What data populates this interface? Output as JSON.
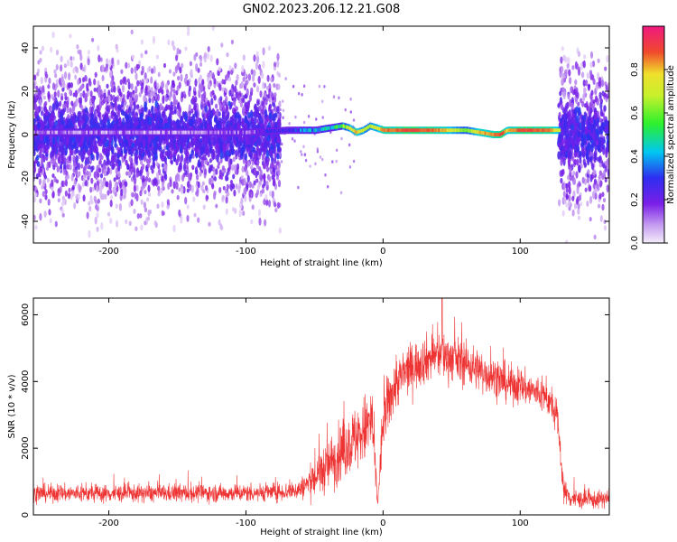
{
  "title": "GN02.2023.206.12.21.G08",
  "chart_data": [
    {
      "type": "heatmap",
      "xlabel": "Height of straight line (km)",
      "ylabel": "Frequency (Hz)",
      "xlim": [
        -255,
        165
      ],
      "ylim": [
        -50,
        50
      ],
      "xticks": [
        -200,
        -100,
        0,
        100
      ],
      "yticks": [
        -40,
        -20,
        0,
        20,
        40
      ],
      "colorbar": {
        "label": "Normalized spectral amplitude",
        "range": [
          0,
          1
        ],
        "ticks": [
          "0.0",
          "0.2",
          "0.4",
          "0.6",
          "0.8"
        ],
        "colormap": "rainbow (white/violet -> purple -> blue -> cyan -> green -> yellow -> red -> pink)"
      },
      "signal_track": {
        "description": "Dominant spectral ridge near 0 to +3 Hz",
        "x": [
          -255,
          -200,
          -150,
          -100,
          -70,
          -50,
          -40,
          -30,
          -25,
          -20,
          -15,
          -10,
          0,
          20,
          40,
          60,
          70,
          80,
          85,
          90,
          100,
          120,
          128
        ],
        "freq": [
          1,
          1,
          1,
          1,
          2,
          2,
          3,
          4,
          3,
          1,
          2,
          4,
          2,
          2,
          2,
          2,
          1,
          0,
          0,
          2,
          2,
          2,
          2
        ],
        "amplitude": [
          0.1,
          0.1,
          0.1,
          0.15,
          0.3,
          0.4,
          0.45,
          0.6,
          0.75,
          0.8,
          0.7,
          0.65,
          0.85,
          0.9,
          0.85,
          0.6,
          0.8,
          0.85,
          0.9,
          0.8,
          0.9,
          0.85,
          0.7
        ]
      },
      "noise_regions": [
        {
          "x": [
            -255,
            -75
          ],
          "spread_hz": 50
        },
        {
          "x": [
            128,
            165
          ],
          "spread_hz": 50
        }
      ]
    },
    {
      "type": "line",
      "xlabel": "Height of straight line (km)",
      "ylabel": "SNR (10 * v/v)",
      "xlim": [
        -255,
        165
      ],
      "ylim": [
        0,
        6500
      ],
      "xticks": [
        -200,
        -100,
        0,
        100
      ],
      "yticks": [
        0,
        2000,
        4000,
        6000
      ],
      "series": [
        {
          "color": "#ee3333",
          "envelope": {
            "x": [
              -255,
              -200,
              -150,
              -100,
              -70,
              -60,
              -50,
              -40,
              -30,
              -20,
              -12,
              -8,
              -4,
              0,
              5,
              10,
              20,
              30,
              40,
              50,
              60,
              70,
              80,
              90,
              100,
              110,
              120,
              127,
              132,
              137,
              145,
              155,
              165
            ],
            "mean": [
              650,
              640,
              650,
              660,
              700,
              780,
              1100,
              1500,
              1900,
              2300,
              2600,
              2900,
              300,
              2800,
              3500,
              4000,
              4400,
              4650,
              4800,
              4700,
              4550,
              4350,
              4150,
              3950,
              3850,
              3700,
              3500,
              2900,
              700,
              500,
              450,
              450,
              500
            ],
            "noise": [
              220,
              220,
              220,
              220,
              230,
              260,
              500,
              650,
              750,
              800,
              900,
              900,
              200,
              800,
              700,
              650,
              600,
              600,
              600,
              580,
              550,
              520,
              500,
              480,
              450,
              430,
              420,
              400,
              300,
              250,
              220,
              220,
              220
            ]
          },
          "peak": {
            "x": 43,
            "y": 6500
          }
        }
      ]
    }
  ]
}
